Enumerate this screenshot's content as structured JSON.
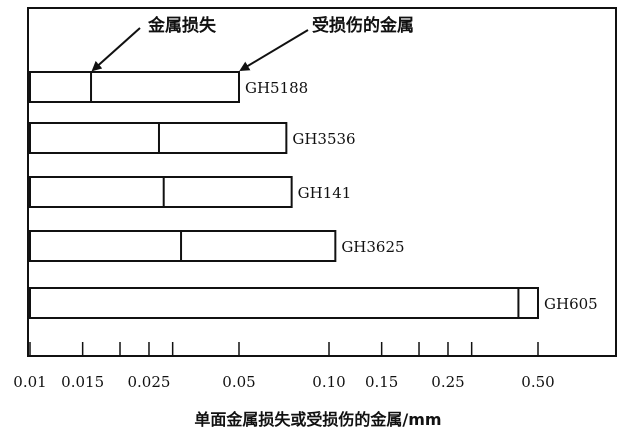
{
  "chart_data": {
    "type": "bar",
    "orientation": "horizontal",
    "x_scale": "log",
    "xlabel": "单面金属损失或受损伤的金属/mm",
    "xlim": [
      0.01,
      0.8
    ],
    "x_ticks": [
      0.01,
      0.015,
      0.02,
      0.025,
      0.03,
      0.05,
      0.1,
      0.15,
      0.2,
      0.25,
      0.3,
      0.5
    ],
    "x_tick_labels": [
      "0.01",
      "0.015",
      "",
      "0.025",
      "",
      "0.05",
      "0.10",
      "0.15",
      "",
      "0.25",
      "",
      "0.50"
    ],
    "categories": [
      "GH5188",
      "GH3536",
      "GH141",
      "GH3625",
      "GH605"
    ],
    "series": [
      {
        "name": "金属损失",
        "values": [
          0.016,
          0.027,
          0.028,
          0.032,
          0.43
        ]
      },
      {
        "name": "受损伤的金属",
        "values": [
          0.05,
          0.072,
          0.075,
          0.105,
          0.5
        ]
      }
    ],
    "annotations": [
      {
        "text": "金属损失",
        "target": "GH5188 metal loss boundary"
      },
      {
        "text": "受损伤的金属",
        "target": "GH5188 damaged metal end"
      }
    ],
    "grid": false
  }
}
